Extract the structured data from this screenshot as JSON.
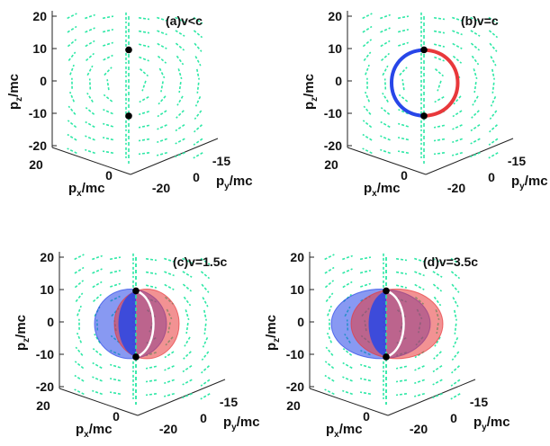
{
  "chart_data": [
    {
      "type": "vector_field_3d",
      "title": "(a)v<c",
      "zlabel": "p",
      "zlabel_sub": "z",
      "zlabel_unit": "/mc",
      "xlabel": "p",
      "xlabel_sub": "x",
      "xlabel_unit": "/mc",
      "ylabel": "p",
      "ylabel_sub": "y",
      "ylabel_unit": "/mc",
      "z_ticks": [
        "20",
        "10",
        "0",
        "-10",
        "-20"
      ],
      "x_ticks": [
        "20",
        "0",
        "-20"
      ],
      "y_ticks": [
        "-15",
        "0"
      ],
      "zlim": [
        -20,
        20
      ],
      "xlim": [
        -20,
        20
      ],
      "ylim": [
        -15,
        15
      ],
      "points": [
        {
          "px": 0,
          "py": 0,
          "pz": 9.6
        },
        {
          "px": 0,
          "py": 0,
          "pz": -10.8
        }
      ],
      "surface": "none",
      "field_color": "#2ee8a6",
      "colors": {
        "positive": "#e8383b",
        "negative": "#2746e8",
        "point": "#000000"
      }
    },
    {
      "type": "vector_field_3d",
      "title": "(b)v=c",
      "zlabel": "p",
      "zlabel_sub": "z",
      "zlabel_unit": "/mc",
      "xlabel": "p",
      "xlabel_sub": "x",
      "xlabel_unit": "/mc",
      "ylabel": "p",
      "ylabel_sub": "y",
      "ylabel_unit": "/mc",
      "z_ticks": [
        "20",
        "10",
        "0",
        "-10",
        "-20"
      ],
      "x_ticks": [
        "20",
        "0",
        "-20"
      ],
      "y_ticks": [
        "-15",
        "0"
      ],
      "zlim": [
        -20,
        20
      ],
      "xlim": [
        -20,
        20
      ],
      "ylim": [
        -15,
        15
      ],
      "points": [
        {
          "px": 0,
          "py": 0,
          "pz": 9.6
        },
        {
          "px": 0,
          "py": 0,
          "pz": -10.8
        }
      ],
      "surface": "ring",
      "field_color": "#2ee8a6",
      "colors": {
        "positive": "#e8383b",
        "negative": "#2746e8",
        "point": "#000000"
      }
    },
    {
      "type": "vector_field_3d",
      "title": "(c)v=1.5c",
      "zlabel": "p",
      "zlabel_sub": "z",
      "zlabel_unit": "/mc",
      "xlabel": "p",
      "xlabel_sub": "x",
      "xlabel_unit": "/mc",
      "ylabel": "p",
      "ylabel_sub": "y",
      "ylabel_unit": "/mc",
      "z_ticks": [
        "20",
        "10",
        "0",
        "-10",
        "-20"
      ],
      "x_ticks": [
        "20",
        "0",
        "-20"
      ],
      "y_ticks": [
        "-15",
        "0"
      ],
      "zlim": [
        -20,
        20
      ],
      "xlim": [
        -20,
        20
      ],
      "ylim": [
        -15,
        15
      ],
      "points": [
        {
          "px": 0,
          "py": 0,
          "pz": 9.6
        },
        {
          "px": 0,
          "py": 0,
          "pz": -10.8
        }
      ],
      "surface": "shell",
      "field_color": "#2ee8a6",
      "colors": {
        "positive": "#e8383b",
        "negative": "#2746e8",
        "point": "#000000"
      }
    },
    {
      "type": "vector_field_3d",
      "title": "(d)v=3.5c",
      "zlabel": "p",
      "zlabel_sub": "z",
      "zlabel_unit": "/mc",
      "xlabel": "p",
      "xlabel_sub": "x",
      "xlabel_unit": "/mc",
      "ylabel": "p",
      "ylabel_sub": "y",
      "ylabel_unit": "/mc",
      "z_ticks": [
        "20",
        "10",
        "0",
        "-10",
        "-20"
      ],
      "x_ticks": [
        "20",
        "0",
        "-20"
      ],
      "y_ticks": [
        "-15",
        "0"
      ],
      "zlim": [
        -20,
        20
      ],
      "xlim": [
        -20,
        20
      ],
      "ylim": [
        -15,
        15
      ],
      "points": [
        {
          "px": 0,
          "py": 0,
          "pz": 9.6
        },
        {
          "px": 0,
          "py": 0,
          "pz": -10.8
        }
      ],
      "surface": "shell-wide",
      "field_color": "#2ee8a6",
      "colors": {
        "positive": "#e8383b",
        "negative": "#2746e8",
        "point": "#000000"
      }
    }
  ]
}
